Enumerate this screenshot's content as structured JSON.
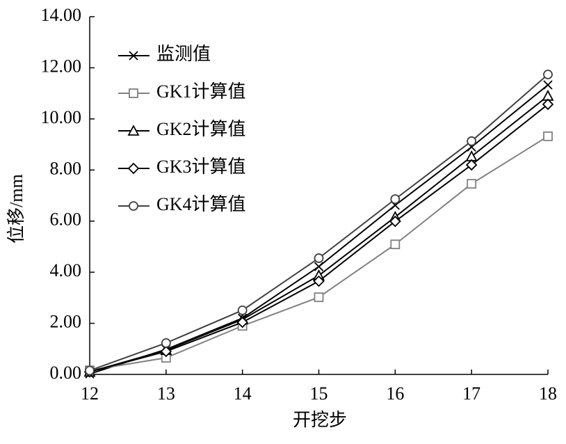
{
  "chart_data": {
    "type": "line",
    "x_label": "开挖步",
    "y_label": "位移/mm",
    "x": [
      12,
      13,
      14,
      15,
      16,
      17,
      18
    ],
    "xlim": [
      12,
      18
    ],
    "xticks": [
      12,
      13,
      14,
      15,
      16,
      17,
      18
    ],
    "ylim": [
      0,
      14
    ],
    "yticks": [
      {
        "value": 0,
        "label": "0.00"
      },
      {
        "value": 2,
        "label": "2.00"
      },
      {
        "value": 4,
        "label": "4.00"
      },
      {
        "value": 6,
        "label": "6.00"
      },
      {
        "value": 8,
        "label": "8.00"
      },
      {
        "value": 10,
        "label": "10.00"
      },
      {
        "value": 12,
        "label": "12.00"
      },
      {
        "value": 14,
        "label": "14.00"
      }
    ],
    "grid": false,
    "legend": "upper left",
    "series": [
      {
        "name": "监测值",
        "color": "#000000",
        "marker": "x",
        "values": [
          0.02,
          0.98,
          2.2,
          4.22,
          6.62,
          8.9,
          11.33
        ]
      },
      {
        "name": "GK1计算值",
        "color": "#808080",
        "marker": "square",
        "values": [
          0.16,
          0.65,
          1.9,
          3.02,
          5.09,
          7.46,
          9.32
        ]
      },
      {
        "name": "GK2计算值",
        "color": "#000000",
        "marker": "triangle",
        "values": [
          0.1,
          0.95,
          2.15,
          3.87,
          6.16,
          8.53,
          10.9
        ]
      },
      {
        "name": "GK3计算值",
        "color": "#000000",
        "marker": "diamond",
        "values": [
          0.1,
          0.9,
          2.04,
          3.65,
          5.99,
          8.2,
          10.57
        ]
      },
      {
        "name": "GK4计算值",
        "color": "#404040",
        "marker": "circle",
        "values": [
          0.15,
          1.23,
          2.51,
          4.55,
          6.86,
          9.13,
          11.74
        ]
      }
    ]
  }
}
